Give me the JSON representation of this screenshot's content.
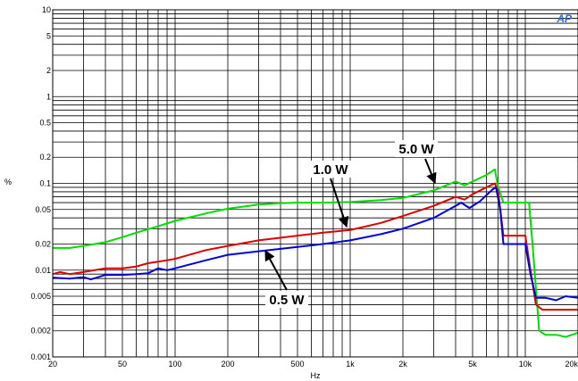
{
  "chart_data": {
    "type": "line",
    "xlabel": "Hz",
    "ylabel": "%",
    "xscale": "log",
    "yscale": "log",
    "xlim": [
      20,
      20000
    ],
    "ylim": [
      0.001,
      10
    ],
    "grid": true,
    "x_tick_labels": [
      {
        "value": 20,
        "label": "20"
      },
      {
        "value": 50,
        "label": "50"
      },
      {
        "value": 100,
        "label": "100"
      },
      {
        "value": 200,
        "label": "200"
      },
      {
        "value": 500,
        "label": "500"
      },
      {
        "value": 1000,
        "label": "1k"
      },
      {
        "value": 2000,
        "label": "2k"
      },
      {
        "value": 5000,
        "label": "5k"
      },
      {
        "value": 10000,
        "label": "10k"
      },
      {
        "value": 20000,
        "label": "20k"
      }
    ],
    "y_tick_labels": [
      {
        "value": 10,
        "label": "10"
      },
      {
        "value": 5,
        "label": "5"
      },
      {
        "value": 2,
        "label": "2"
      },
      {
        "value": 1,
        "label": "1"
      },
      {
        "value": 0.5,
        "label": "0.5"
      },
      {
        "value": 0.2,
        "label": "0.2"
      },
      {
        "value": 0.1,
        "label": "0.1"
      },
      {
        "value": 0.05,
        "label": "0.05"
      },
      {
        "value": 0.02,
        "label": "0.02"
      },
      {
        "value": 0.01,
        "label": "0.01"
      },
      {
        "value": 0.005,
        "label": "0.005"
      },
      {
        "value": 0.002,
        "label": "0.002"
      },
      {
        "value": 0.001,
        "label": "0.001"
      }
    ],
    "series": [
      {
        "name": "5.0 W",
        "color": "#00dd00",
        "points": [
          [
            20,
            0.018
          ],
          [
            25,
            0.018
          ],
          [
            30,
            0.019
          ],
          [
            40,
            0.021
          ],
          [
            50,
            0.024
          ],
          [
            60,
            0.027
          ],
          [
            80,
            0.032
          ],
          [
            100,
            0.037
          ],
          [
            150,
            0.045
          ],
          [
            200,
            0.051
          ],
          [
            300,
            0.057
          ],
          [
            400,
            0.059
          ],
          [
            500,
            0.06
          ],
          [
            700,
            0.06
          ],
          [
            1000,
            0.061
          ],
          [
            1500,
            0.064
          ],
          [
            2000,
            0.068
          ],
          [
            3000,
            0.083
          ],
          [
            4000,
            0.105
          ],
          [
            4500,
            0.095
          ],
          [
            5000,
            0.105
          ],
          [
            6000,
            0.125
          ],
          [
            6700,
            0.145
          ],
          [
            7000,
            0.09
          ],
          [
            7500,
            0.06
          ],
          [
            9000,
            0.06
          ],
          [
            10500,
            0.06
          ],
          [
            11000,
            0.02
          ],
          [
            12000,
            0.002
          ],
          [
            13000,
            0.0018
          ],
          [
            15000,
            0.0018
          ],
          [
            17000,
            0.0017
          ],
          [
            20000,
            0.0019
          ]
        ]
      },
      {
        "name": "1.0 W",
        "color": "#dd0000",
        "points": [
          [
            20,
            0.009
          ],
          [
            22,
            0.0095
          ],
          [
            25,
            0.009
          ],
          [
            30,
            0.0095
          ],
          [
            40,
            0.0105
          ],
          [
            50,
            0.0105
          ],
          [
            60,
            0.011
          ],
          [
            70,
            0.012
          ],
          [
            80,
            0.0125
          ],
          [
            90,
            0.013
          ],
          [
            100,
            0.0135
          ],
          [
            150,
            0.017
          ],
          [
            200,
            0.019
          ],
          [
            300,
            0.022
          ],
          [
            500,
            0.025
          ],
          [
            700,
            0.027
          ],
          [
            1000,
            0.029
          ],
          [
            1500,
            0.035
          ],
          [
            2000,
            0.042
          ],
          [
            3000,
            0.055
          ],
          [
            4000,
            0.07
          ],
          [
            4500,
            0.065
          ],
          [
            5000,
            0.075
          ],
          [
            6000,
            0.09
          ],
          [
            6700,
            0.1
          ],
          [
            7000,
            0.08
          ],
          [
            7500,
            0.025
          ],
          [
            9000,
            0.025
          ],
          [
            10000,
            0.025
          ],
          [
            10700,
            0.01
          ],
          [
            11500,
            0.004
          ],
          [
            12500,
            0.0035
          ],
          [
            15000,
            0.0035
          ],
          [
            20000,
            0.0035
          ]
        ]
      },
      {
        "name": "0.5 W",
        "color": "#0000dd",
        "points": [
          [
            20,
            0.0082
          ],
          [
            25,
            0.008
          ],
          [
            30,
            0.0083
          ],
          [
            33,
            0.0078
          ],
          [
            40,
            0.0088
          ],
          [
            50,
            0.0088
          ],
          [
            60,
            0.009
          ],
          [
            70,
            0.0092
          ],
          [
            80,
            0.0105
          ],
          [
            90,
            0.01
          ],
          [
            100,
            0.0105
          ],
          [
            150,
            0.013
          ],
          [
            200,
            0.015
          ],
          [
            300,
            0.0165
          ],
          [
            500,
            0.0185
          ],
          [
            700,
            0.02
          ],
          [
            1000,
            0.022
          ],
          [
            1500,
            0.026
          ],
          [
            2000,
            0.03
          ],
          [
            3000,
            0.04
          ],
          [
            4000,
            0.055
          ],
          [
            4300,
            0.06
          ],
          [
            4800,
            0.052
          ],
          [
            5500,
            0.062
          ],
          [
            6500,
            0.085
          ],
          [
            6800,
            0.09
          ],
          [
            7200,
            0.05
          ],
          [
            7500,
            0.02
          ],
          [
            9000,
            0.02
          ],
          [
            10000,
            0.02
          ],
          [
            10700,
            0.009
          ],
          [
            11500,
            0.0048
          ],
          [
            13000,
            0.0048
          ],
          [
            15000,
            0.0045
          ],
          [
            17000,
            0.005
          ],
          [
            20000,
            0.0048
          ]
        ]
      }
    ],
    "annotations": [
      {
        "text": "5.0 W",
        "x": 3000,
        "y": 0.09
      },
      {
        "text": "1.0 W",
        "x": 900,
        "y": 0.028
      },
      {
        "text": "0.5 W",
        "x": 320,
        "y": 0.018
      }
    ],
    "logo": "AP"
  }
}
